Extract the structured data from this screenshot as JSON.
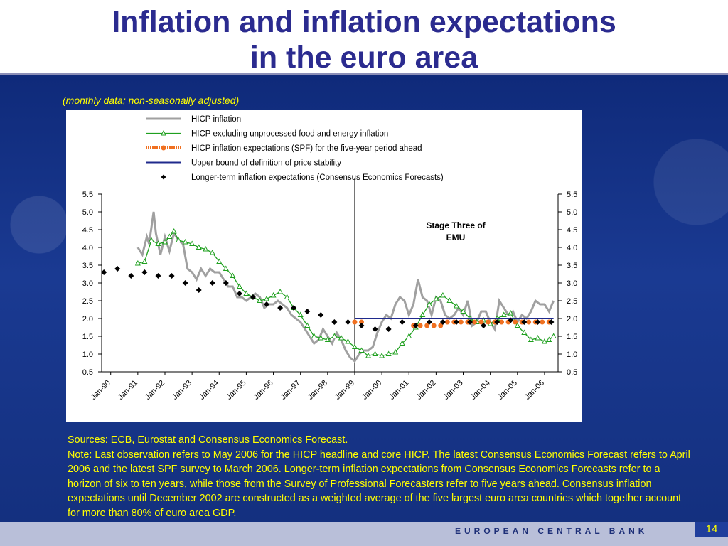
{
  "slide": {
    "title_line1": "Inflation and inflation expectations",
    "title_line2": "in the euro area",
    "subtitle": "(monthly data; non-seasonally adjusted)",
    "notes": [
      "Sources: ECB, Eurostat and Consensus Economics Forecast.",
      "Note: Last observation refers to May 2006 for the HICP headline and core HICP. The latest Consensus Economics Forecast refers to April 2006 and the latest SPF survey to March 2006. Longer-term inflation expectations from Consensus Economics Forecasts refer to a horizon of six to ten years, while those from the Survey of Professional Forecasters refer to five years ahead. Consensus inflation expectations until December 2002 are constructed as a weighted average of the five largest euro area countries which together account for more than 80% of euro area GDP."
    ],
    "footer_text": "EUROPEAN CENTRAL BANK",
    "page_number": "14",
    "colors": {
      "title": "#2b2b8f",
      "background": "#1a3a92",
      "notes": "#ffff00",
      "footer_band": "#b9bfd9"
    }
  },
  "chart_data": {
    "type": "line",
    "ylim": [
      0.5,
      5.5
    ],
    "yticks": [
      "0.5",
      "1.0",
      "1.5",
      "2.0",
      "2.5",
      "3.0",
      "3.5",
      "4.0",
      "4.5",
      "5.0",
      "5.5"
    ],
    "categories": [
      "Jan-90",
      "Jan-91",
      "Jan-92",
      "Jan-93",
      "Jan-94",
      "Jan-95",
      "Jan-96",
      "Jan-97",
      "Jan-98",
      "Jan-99",
      "Jan-00",
      "Jan-01",
      "Jan-02",
      "Jan-03",
      "Jan-04",
      "Jan-05",
      "Jan-06"
    ],
    "x_range": [
      "1989-09",
      "2006-07"
    ],
    "annotation": {
      "text": [
        "Stage Three of",
        "EMU"
      ],
      "vline_at": "1999-01"
    },
    "series": [
      {
        "name": "HICP inflation",
        "kind": "line",
        "color": "#a0a0a0",
        "points": [
          [
            "1991-01",
            4.0
          ],
          [
            "1991-03",
            3.8
          ],
          [
            "1991-05",
            4.3
          ],
          [
            "1991-06",
            4.1
          ],
          [
            "1991-08",
            5.0
          ],
          [
            "1991-09",
            4.4
          ],
          [
            "1991-11",
            3.8
          ],
          [
            "1992-01",
            4.3
          ],
          [
            "1992-03",
            3.9
          ],
          [
            "1992-05",
            4.4
          ],
          [
            "1992-07",
            4.2
          ],
          [
            "1992-09",
            4.1
          ],
          [
            "1992-11",
            3.4
          ],
          [
            "1993-01",
            3.3
          ],
          [
            "1993-03",
            3.1
          ],
          [
            "1993-05",
            3.4
          ],
          [
            "1993-07",
            3.2
          ],
          [
            "1993-09",
            3.4
          ],
          [
            "1993-11",
            3.3
          ],
          [
            "1994-01",
            3.3
          ],
          [
            "1994-03",
            3.1
          ],
          [
            "1994-05",
            2.9
          ],
          [
            "1994-07",
            2.9
          ],
          [
            "1994-09",
            2.6
          ],
          [
            "1994-11",
            2.6
          ],
          [
            "1995-01",
            2.5
          ],
          [
            "1995-03",
            2.6
          ],
          [
            "1995-05",
            2.7
          ],
          [
            "1995-07",
            2.6
          ],
          [
            "1995-09",
            2.3
          ],
          [
            "1995-11",
            2.4
          ],
          [
            "1996-01",
            2.4
          ],
          [
            "1996-03",
            2.5
          ],
          [
            "1996-05",
            2.4
          ],
          [
            "1996-07",
            2.3
          ],
          [
            "1996-09",
            2.1
          ],
          [
            "1996-11",
            2.0
          ],
          [
            "1997-01",
            1.9
          ],
          [
            "1997-03",
            1.7
          ],
          [
            "1997-05",
            1.5
          ],
          [
            "1997-07",
            1.3
          ],
          [
            "1997-09",
            1.4
          ],
          [
            "1997-11",
            1.7
          ],
          [
            "1998-01",
            1.5
          ],
          [
            "1998-03",
            1.3
          ],
          [
            "1998-05",
            1.6
          ],
          [
            "1998-07",
            1.4
          ],
          [
            "1998-09",
            1.1
          ],
          [
            "1998-11",
            0.9
          ],
          [
            "1999-01",
            0.8
          ],
          [
            "1999-03",
            1.0
          ],
          [
            "1999-05",
            1.1
          ],
          [
            "1999-07",
            1.1
          ],
          [
            "1999-09",
            1.2
          ],
          [
            "1999-11",
            1.6
          ],
          [
            "2000-01",
            1.9
          ],
          [
            "2000-03",
            2.1
          ],
          [
            "2000-05",
            2.0
          ],
          [
            "2000-07",
            2.4
          ],
          [
            "2000-09",
            2.6
          ],
          [
            "2000-11",
            2.5
          ],
          [
            "2001-01",
            2.1
          ],
          [
            "2001-03",
            2.4
          ],
          [
            "2001-05",
            3.1
          ],
          [
            "2001-07",
            2.6
          ],
          [
            "2001-09",
            2.5
          ],
          [
            "2001-11",
            2.1
          ],
          [
            "2002-01",
            2.6
          ],
          [
            "2002-03",
            2.5
          ],
          [
            "2002-05",
            2.1
          ],
          [
            "2002-07",
            2.0
          ],
          [
            "2002-09",
            2.1
          ],
          [
            "2002-11",
            2.3
          ],
          [
            "2003-01",
            2.1
          ],
          [
            "2003-03",
            2.5
          ],
          [
            "2003-05",
            1.8
          ],
          [
            "2003-07",
            1.9
          ],
          [
            "2003-09",
            2.2
          ],
          [
            "2003-11",
            2.2
          ],
          [
            "2004-01",
            1.9
          ],
          [
            "2004-03",
            1.7
          ],
          [
            "2004-05",
            2.5
          ],
          [
            "2004-07",
            2.3
          ],
          [
            "2004-09",
            2.1
          ],
          [
            "2004-11",
            2.2
          ],
          [
            "2005-01",
            1.9
          ],
          [
            "2005-03",
            2.1
          ],
          [
            "2005-05",
            2.0
          ],
          [
            "2005-07",
            2.2
          ],
          [
            "2005-09",
            2.5
          ],
          [
            "2005-11",
            2.4
          ],
          [
            "2006-01",
            2.4
          ],
          [
            "2006-03",
            2.2
          ],
          [
            "2006-05",
            2.5
          ]
        ]
      },
      {
        "name": "HICP excluding unprocessed food and energy inflation",
        "kind": "line-markers",
        "color": "#1fa01f",
        "points": [
          [
            "1991-01",
            3.55
          ],
          [
            "1991-04",
            3.6
          ],
          [
            "1991-07",
            4.2
          ],
          [
            "1991-10",
            4.1
          ],
          [
            "1992-01",
            4.15
          ],
          [
            "1992-03",
            4.3
          ],
          [
            "1992-05",
            4.45
          ],
          [
            "1992-07",
            4.2
          ],
          [
            "1992-10",
            4.15
          ],
          [
            "1993-01",
            4.1
          ],
          [
            "1993-04",
            4.0
          ],
          [
            "1993-07",
            3.95
          ],
          [
            "1993-10",
            3.85
          ],
          [
            "1994-01",
            3.6
          ],
          [
            "1994-04",
            3.4
          ],
          [
            "1994-07",
            3.2
          ],
          [
            "1994-10",
            2.9
          ],
          [
            "1995-01",
            2.7
          ],
          [
            "1995-04",
            2.6
          ],
          [
            "1995-07",
            2.5
          ],
          [
            "1995-10",
            2.55
          ],
          [
            "1996-01",
            2.65
          ],
          [
            "1996-04",
            2.75
          ],
          [
            "1996-07",
            2.6
          ],
          [
            "1996-10",
            2.3
          ],
          [
            "1997-01",
            2.1
          ],
          [
            "1997-04",
            1.8
          ],
          [
            "1997-07",
            1.5
          ],
          [
            "1997-10",
            1.45
          ],
          [
            "1998-01",
            1.4
          ],
          [
            "1998-04",
            1.5
          ],
          [
            "1998-07",
            1.45
          ],
          [
            "1998-10",
            1.35
          ],
          [
            "1999-01",
            1.2
          ],
          [
            "1999-04",
            1.1
          ],
          [
            "1999-07",
            0.95
          ],
          [
            "1999-10",
            1.0
          ],
          [
            "2000-01",
            0.95
          ],
          [
            "2000-04",
            1.0
          ],
          [
            "2000-07",
            1.05
          ],
          [
            "2000-10",
            1.3
          ],
          [
            "2001-01",
            1.5
          ],
          [
            "2001-04",
            1.75
          ],
          [
            "2001-07",
            2.1
          ],
          [
            "2001-10",
            2.4
          ],
          [
            "2002-01",
            2.55
          ],
          [
            "2002-04",
            2.65
          ],
          [
            "2002-07",
            2.5
          ],
          [
            "2002-10",
            2.35
          ],
          [
            "2003-01",
            2.2
          ],
          [
            "2003-04",
            2.0
          ],
          [
            "2003-07",
            1.9
          ],
          [
            "2003-10",
            1.95
          ],
          [
            "2004-01",
            1.85
          ],
          [
            "2004-04",
            2.0
          ],
          [
            "2004-07",
            2.1
          ],
          [
            "2004-10",
            2.15
          ],
          [
            "2005-01",
            1.8
          ],
          [
            "2005-04",
            1.6
          ],
          [
            "2005-07",
            1.4
          ],
          [
            "2005-10",
            1.45
          ],
          [
            "2006-01",
            1.35
          ],
          [
            "2006-03",
            1.4
          ],
          [
            "2006-05",
            1.5
          ]
        ]
      },
      {
        "name": "HICP inflation expectations (SPF) for the five-year period ahead",
        "kind": "dotted",
        "color": "#f07020",
        "points": [
          [
            "1999-01",
            1.9
          ],
          [
            "1999-04",
            1.9
          ],
          [
            "2001-03",
            1.8
          ],
          [
            "2001-06",
            1.8
          ],
          [
            "2001-09",
            1.8
          ],
          [
            "2001-12",
            1.8
          ],
          [
            "2002-03",
            1.8
          ],
          [
            "2002-06",
            1.9
          ],
          [
            "2002-09",
            1.9
          ],
          [
            "2002-12",
            1.9
          ],
          [
            "2003-03",
            1.9
          ],
          [
            "2003-06",
            1.9
          ],
          [
            "2003-09",
            1.9
          ],
          [
            "2003-12",
            1.9
          ],
          [
            "2004-03",
            1.9
          ],
          [
            "2004-06",
            1.9
          ],
          [
            "2004-09",
            1.9
          ],
          [
            "2004-12",
            1.9
          ],
          [
            "2005-03",
            1.9
          ],
          [
            "2005-06",
            1.9
          ],
          [
            "2005-09",
            1.9
          ],
          [
            "2005-12",
            1.9
          ],
          [
            "2006-03",
            1.9
          ]
        ]
      },
      {
        "name": "Upper bound of definition of price stability",
        "kind": "segment",
        "color": "#1f2a8c",
        "points": [
          [
            "1999-01",
            2.0
          ],
          [
            "2006-05",
            2.0
          ]
        ]
      },
      {
        "name": "Longer-term inflation expectations (Consensus Economics Forecasts)",
        "kind": "diamonds",
        "color": "#000000",
        "points": [
          [
            "1989-10",
            3.3
          ],
          [
            "1990-04",
            3.4
          ],
          [
            "1990-10",
            3.2
          ],
          [
            "1991-04",
            3.3
          ],
          [
            "1991-10",
            3.2
          ],
          [
            "1992-04",
            3.2
          ],
          [
            "1992-10",
            3.0
          ],
          [
            "1993-04",
            2.8
          ],
          [
            "1993-10",
            3.0
          ],
          [
            "1994-04",
            3.0
          ],
          [
            "1994-10",
            2.7
          ],
          [
            "1995-04",
            2.6
          ],
          [
            "1995-10",
            2.4
          ],
          [
            "1996-04",
            2.3
          ],
          [
            "1996-10",
            2.3
          ],
          [
            "1997-04",
            2.2
          ],
          [
            "1997-10",
            2.1
          ],
          [
            "1998-04",
            1.9
          ],
          [
            "1998-10",
            1.9
          ],
          [
            "1999-04",
            1.8
          ],
          [
            "1999-10",
            1.7
          ],
          [
            "2000-04",
            1.7
          ],
          [
            "2000-10",
            1.9
          ],
          [
            "2001-04",
            1.8
          ],
          [
            "2001-10",
            1.9
          ],
          [
            "2002-04",
            1.9
          ],
          [
            "2002-10",
            1.9
          ],
          [
            "2003-04",
            1.9
          ],
          [
            "2003-10",
            1.8
          ],
          [
            "2004-04",
            1.9
          ],
          [
            "2004-10",
            1.95
          ],
          [
            "2005-04",
            1.9
          ],
          [
            "2005-10",
            1.9
          ],
          [
            "2006-04",
            1.9
          ]
        ]
      }
    ]
  }
}
